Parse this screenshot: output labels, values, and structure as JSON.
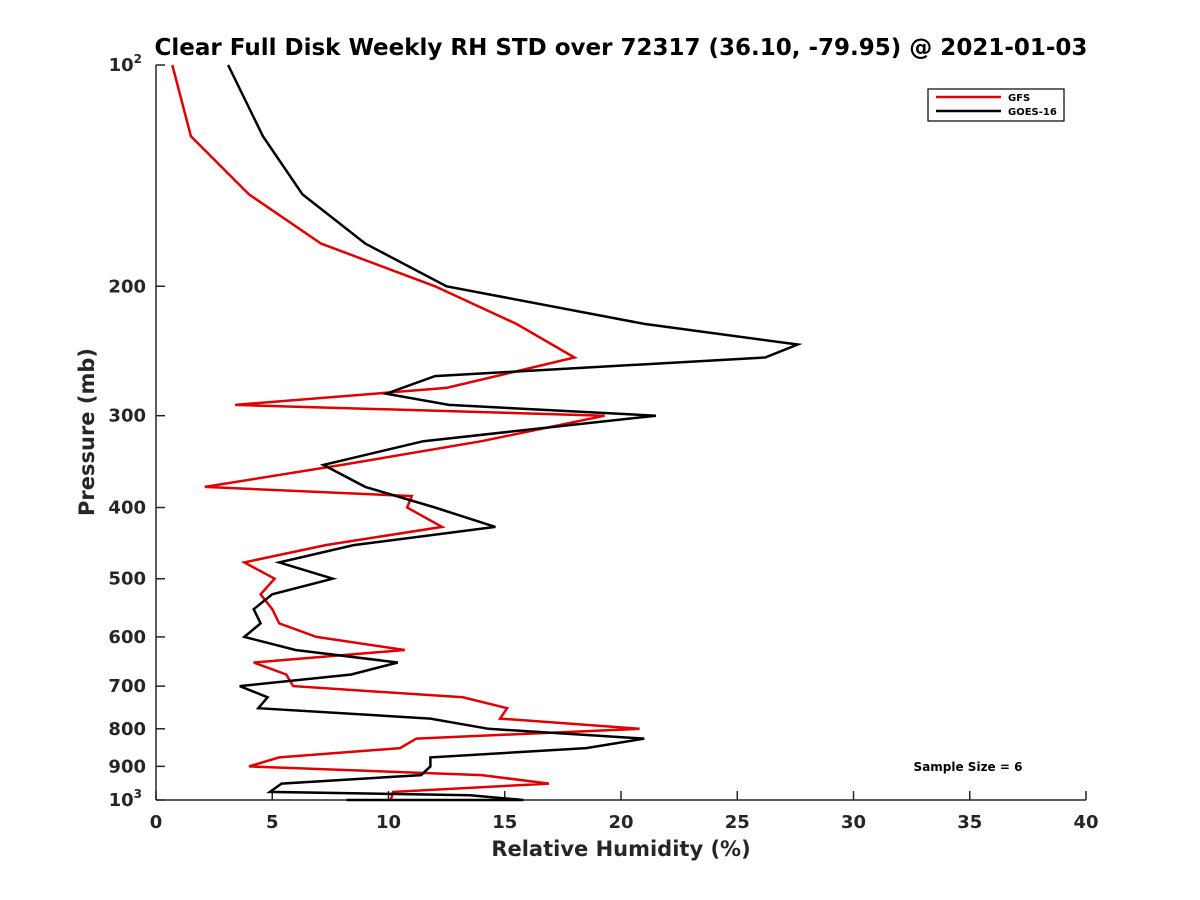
{
  "chart_data": {
    "type": "line",
    "title": "Clear Full Disk Weekly RH STD over 72317 (36.10, -79.95) @ 2021-01-03",
    "xlabel": "Relative Humidity (%)",
    "ylabel": "Pressure (mb)",
    "xlim": [
      0,
      40
    ],
    "ylim": [
      100,
      1000
    ],
    "y_scale": "log",
    "y_reversed": true,
    "x_ticks": [
      "0",
      "5",
      "10",
      "15",
      "20",
      "25",
      "30",
      "35",
      "40"
    ],
    "y_ticks": [
      {
        "value": 100,
        "base": "10",
        "exp": "2"
      },
      {
        "value": 200,
        "label": "200"
      },
      {
        "value": 300,
        "label": "300"
      },
      {
        "value": 400,
        "label": "400"
      },
      {
        "value": 500,
        "label": "500"
      },
      {
        "value": 600,
        "label": "600"
      },
      {
        "value": 700,
        "label": "700"
      },
      {
        "value": 800,
        "label": "800"
      },
      {
        "value": 900,
        "label": "900"
      },
      {
        "value": 1000,
        "base": "10",
        "exp": "3"
      }
    ],
    "grid": false,
    "legend_position": "top-right",
    "annotation": "Sample Size = 6",
    "series": [
      {
        "name": "GFS",
        "color": "#e00000",
        "points": [
          [
            0.7,
            100
          ],
          [
            1.5,
            125
          ],
          [
            4.0,
            150
          ],
          [
            7.1,
            175
          ],
          [
            12.0,
            200
          ],
          [
            15.5,
            225
          ],
          [
            18.0,
            250
          ],
          [
            12.5,
            275
          ],
          [
            3.4,
            290
          ],
          [
            19.3,
            300
          ],
          [
            14.0,
            325
          ],
          [
            8.0,
            350
          ],
          [
            2.1,
            375
          ],
          [
            11.0,
            386
          ],
          [
            10.8,
            400
          ],
          [
            12.3,
            425
          ],
          [
            7.3,
            450
          ],
          [
            3.8,
            475
          ],
          [
            5.1,
            500
          ],
          [
            4.5,
            525
          ],
          [
            5.0,
            550
          ],
          [
            5.3,
            575
          ],
          [
            6.9,
            600
          ],
          [
            10.7,
            625
          ],
          [
            4.2,
            650
          ],
          [
            5.6,
            675
          ],
          [
            5.9,
            700
          ],
          [
            13.2,
            725
          ],
          [
            15.1,
            750
          ],
          [
            14.8,
            775
          ],
          [
            20.8,
            800
          ],
          [
            11.2,
            825
          ],
          [
            10.5,
            850
          ],
          [
            5.3,
            875
          ],
          [
            4.0,
            900
          ],
          [
            14.0,
            925
          ],
          [
            16.9,
            950
          ],
          [
            10.2,
            975
          ],
          [
            10.1,
            1000
          ]
        ]
      },
      {
        "name": "GOES-16",
        "color": "#000000",
        "points": [
          [
            3.1,
            100
          ],
          [
            4.6,
            125
          ],
          [
            6.3,
            150
          ],
          [
            9.0,
            175
          ],
          [
            12.5,
            200
          ],
          [
            21.0,
            225
          ],
          [
            27.6,
            240
          ],
          [
            26.2,
            250
          ],
          [
            12.0,
            265
          ],
          [
            9.9,
            280
          ],
          [
            12.6,
            290
          ],
          [
            21.5,
            300
          ],
          [
            11.5,
            325
          ],
          [
            7.2,
            350
          ],
          [
            9.0,
            375
          ],
          [
            12.0,
            400
          ],
          [
            14.6,
            425
          ],
          [
            8.5,
            450
          ],
          [
            5.3,
            475
          ],
          [
            7.6,
            500
          ],
          [
            5.0,
            525
          ],
          [
            4.2,
            550
          ],
          [
            4.5,
            575
          ],
          [
            3.8,
            600
          ],
          [
            6.0,
            625
          ],
          [
            10.4,
            650
          ],
          [
            8.4,
            675
          ],
          [
            3.6,
            700
          ],
          [
            4.8,
            725
          ],
          [
            4.4,
            750
          ],
          [
            11.8,
            775
          ],
          [
            14.3,
            800
          ],
          [
            21.0,
            825
          ],
          [
            18.5,
            850
          ],
          [
            11.8,
            875
          ],
          [
            11.8,
            900
          ],
          [
            11.4,
            925
          ],
          [
            5.4,
            950
          ],
          [
            4.9,
            975
          ],
          [
            13.5,
            985
          ],
          [
            15.8,
            1000
          ],
          [
            8.2,
            1000
          ],
          [
            9.1,
            1000
          ],
          [
            12.8,
            1000
          ]
        ]
      }
    ]
  }
}
